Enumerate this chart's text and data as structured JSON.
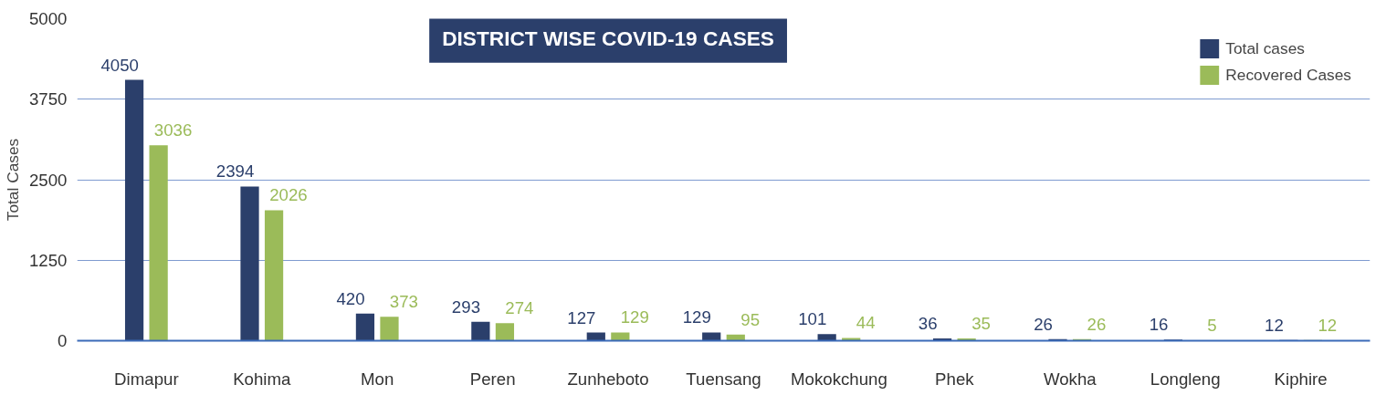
{
  "chart_data": {
    "type": "bar",
    "title": "DISTRICT WISE COVID-19 CASES",
    "ylabel": "Total Cases",
    "categories": [
      "Dimapur",
      "Kohima",
      "Mon",
      "Peren",
      "Zunheboto",
      "Tuensang",
      "Mokokchung",
      "Phek",
      "Wokha",
      "Longleng",
      "Kiphire"
    ],
    "series": [
      {
        "name": "Total cases",
        "color": "#2b3f6b",
        "values": [
          4050,
          2394,
          420,
          293,
          127,
          129,
          101,
          36,
          26,
          16,
          12
        ]
      },
      {
        "name": "Recovered Cases",
        "color": "#9bbb59",
        "values": [
          3036,
          2026,
          373,
          274,
          129,
          95,
          44,
          35,
          26,
          5,
          12
        ]
      }
    ],
    "ylim": [
      0,
      5000
    ],
    "yticks": [
      0,
      1250,
      2500,
      3750,
      5000
    ],
    "grid": "y",
    "legend": "top right",
    "data_labels": true
  }
}
